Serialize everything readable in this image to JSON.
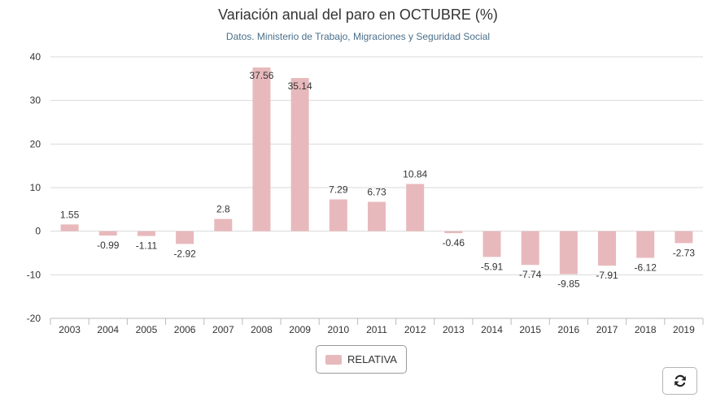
{
  "chart_data": {
    "type": "bar",
    "title": "Variación anual del paro en OCTUBRE (%)",
    "subtitle": "Datos. Ministerio de Trabajo, Migraciones y Seguridad Social",
    "xlabel": "",
    "ylabel": "",
    "categories": [
      "2003",
      "2004",
      "2005",
      "2006",
      "2007",
      "2008",
      "2009",
      "2010",
      "2011",
      "2012",
      "2013",
      "2014",
      "2015",
      "2016",
      "2017",
      "2018",
      "2019"
    ],
    "series": [
      {
        "name": "RELATIVA",
        "values": [
          1.55,
          -0.99,
          -1.11,
          -2.92,
          2.8,
          37.56,
          35.14,
          7.29,
          6.73,
          10.84,
          -0.46,
          -5.91,
          -7.74,
          -9.85,
          -7.91,
          -6.12,
          -2.73
        ],
        "labels": [
          "1.55",
          "-0.99",
          "-1.11",
          "-2.92",
          "2.8",
          "37.56",
          "35.14",
          "7.29",
          "6.73",
          "10.84",
          "-0.46",
          "-5.91",
          "-7.74",
          "-9.85",
          "-7.91",
          "-6.12",
          "-2.73"
        ]
      }
    ],
    "ylim": [
      -20,
      40
    ],
    "yticks": [
      -20,
      -10,
      0,
      10,
      20,
      30,
      40
    ],
    "ytick_labels": [
      "-20",
      "-10",
      "0",
      "10",
      "20",
      "30",
      "40"
    ],
    "grid": true,
    "legend": "bottom-center"
  },
  "colors": {
    "bar": "#e8b9bc",
    "grid": "#d9d9d9",
    "axis": "#bbbbbb",
    "text": "#333333",
    "subtitle": "#4a6f8a"
  },
  "legend": {
    "label": "RELATIVA"
  },
  "toolbar": {
    "refresh_icon": "refresh-icon"
  }
}
